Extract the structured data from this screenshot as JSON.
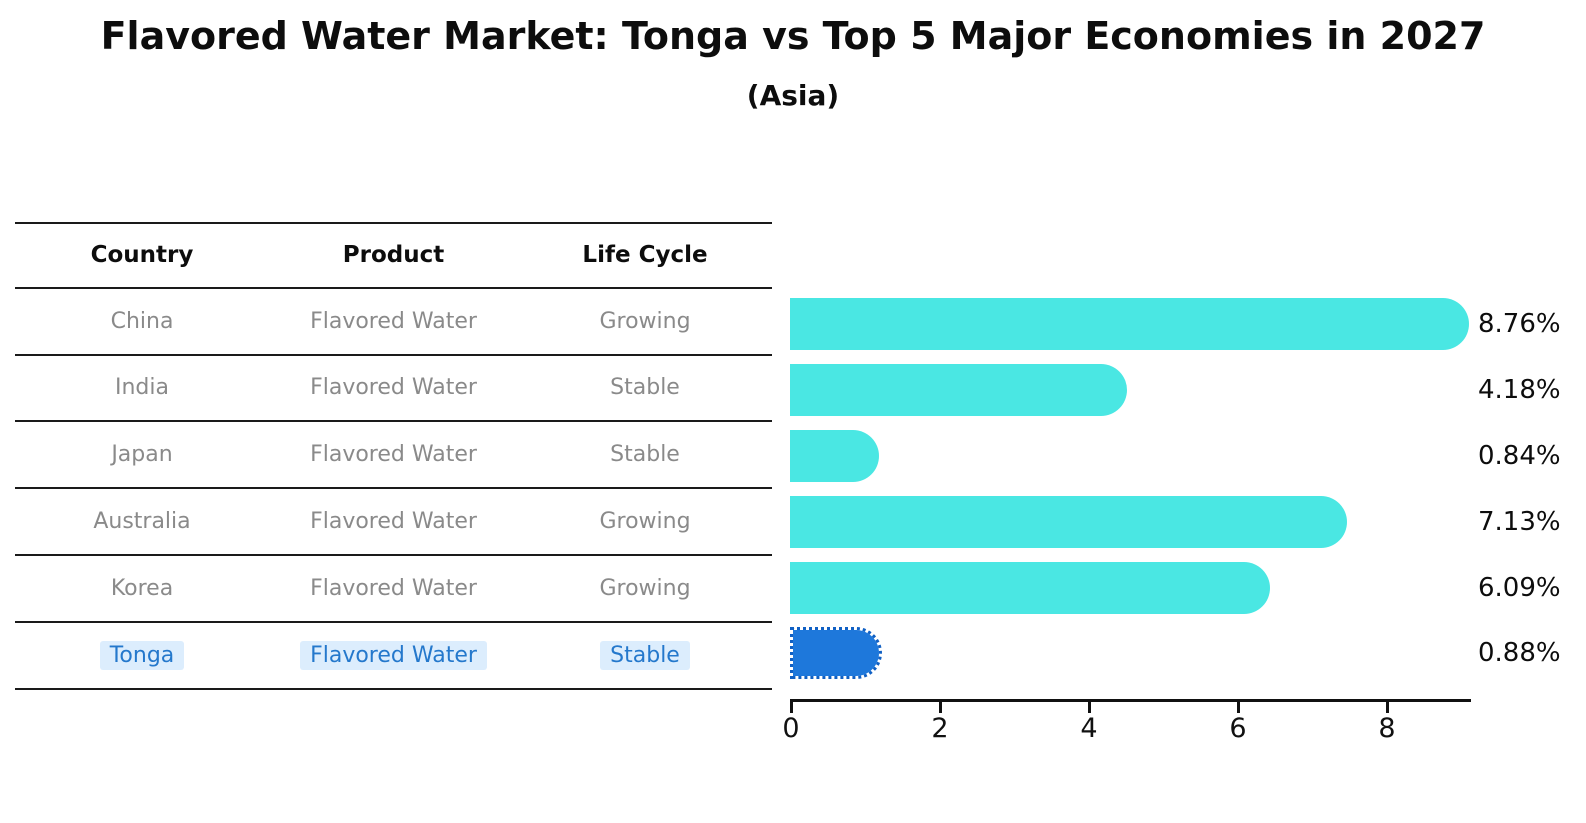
{
  "title": "Flavored Water Market: Tonga vs Top 5 Major Economies in 2027",
  "subtitle": "(Asia)",
  "table": {
    "headers": [
      "Country",
      "Product",
      "Life Cycle"
    ],
    "rows": [
      {
        "country": "China",
        "product": "Flavored Water",
        "life_cycle": "Growing",
        "highlighted": false
      },
      {
        "country": "India",
        "product": "Flavored Water",
        "life_cycle": "Stable",
        "highlighted": false
      },
      {
        "country": "Japan",
        "product": "Flavored Water",
        "life_cycle": "Stable",
        "highlighted": false
      },
      {
        "country": "Australia",
        "product": "Flavored Water",
        "life_cycle": "Growing",
        "highlighted": false
      },
      {
        "country": "Korea",
        "product": "Flavored Water",
        "life_cycle": "Growing",
        "highlighted": false
      },
      {
        "country": "Tonga",
        "product": "Flavored Water",
        "life_cycle": "Stable",
        "highlighted": true
      }
    ]
  },
  "chart_data": {
    "type": "bar",
    "orientation": "horizontal",
    "title": "Flavored Water Market: Tonga vs Top 5 Major Economies in 2027 (Asia)",
    "categories": [
      "China",
      "India",
      "Japan",
      "Australia",
      "Korea",
      "Tonga"
    ],
    "values": [
      8.76,
      4.18,
      0.84,
      7.13,
      6.09,
      0.88
    ],
    "value_labels": [
      "8.76%",
      "4.18%",
      "0.84%",
      "7.13%",
      "6.09%",
      "0.88%"
    ],
    "xticks": [
      "0",
      "2",
      "4",
      "6",
      "8"
    ],
    "xtick_values": [
      0,
      2,
      4,
      6,
      8
    ],
    "xlim": [
      0,
      9.15
    ],
    "unit": "%",
    "grid": false,
    "legend": false,
    "bar_color": "#4AE7E3",
    "highlight_index": 5,
    "highlight_color": "#1E78DB"
  },
  "colors": {
    "background": "#FFFFFF",
    "text_primary": "#0D0D0D",
    "table_text": "#8A8A8A",
    "table_line": "#1A1A1A",
    "highlight_text": "#2478CC",
    "highlight_chip_bg": "#DCEDFD",
    "bar_cyan": "#4AE7E3",
    "bar_blue": "#1E78DB"
  }
}
